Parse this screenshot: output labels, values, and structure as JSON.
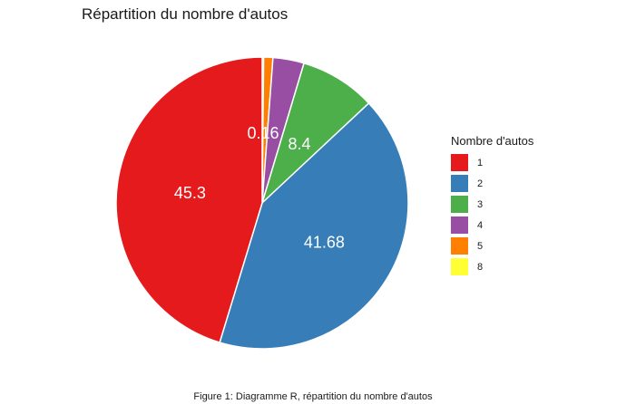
{
  "chart_data": {
    "type": "pie",
    "title": "Répartition du nombre d'autos",
    "caption": "Figure 1: Diagramme R, répartition du nombre d'autos",
    "legend_title": "Nombre d'autos",
    "legend_position": "right",
    "categories": [
      "1",
      "2",
      "3",
      "4",
      "5",
      "8"
    ],
    "values": [
      45.3,
      41.68,
      8.4,
      3.44,
      1.02,
      0.16
    ],
    "data_labels": [
      "45.3",
      "41.68",
      "8.4",
      "",
      "",
      "0.16"
    ],
    "colors": [
      "#E41A1C",
      "#377EB8",
      "#4DAF4A",
      "#984EA3",
      "#FF7F00",
      "#FFFF33"
    ]
  }
}
